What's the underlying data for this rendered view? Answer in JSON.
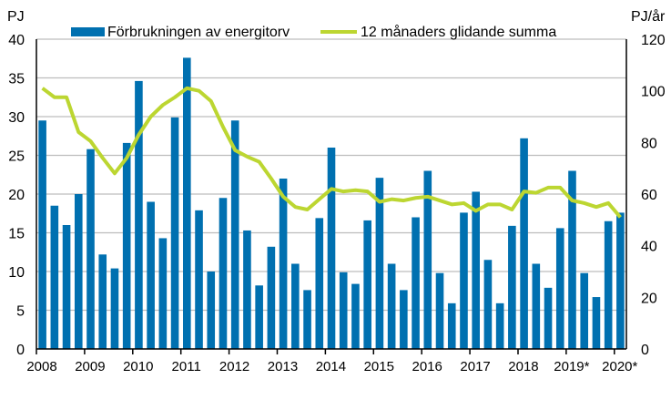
{
  "chart_data": {
    "type": "bar+line",
    "left_axis_unit": "PJ",
    "right_axis_unit": "PJ/år",
    "ylim_left": [
      0,
      40
    ],
    "ylim_right": [
      0,
      120
    ],
    "yticks_left": [
      0,
      5,
      10,
      15,
      20,
      25,
      30,
      35,
      40
    ],
    "yticks_right": [
      0,
      20,
      40,
      60,
      80,
      100,
      120
    ],
    "grid": true,
    "legend_placement": "top",
    "x_labels": [
      "2008",
      "2009",
      "2010",
      "2011",
      "2012",
      "2013",
      "2014",
      "2015",
      "2016",
      "2017",
      "2018",
      "2019*",
      "2020*"
    ],
    "colors": {
      "bars": "#0070b0",
      "line": "#bcd631"
    },
    "series": [
      {
        "name": "Förbrukningen av energitorv",
        "type": "bar",
        "axis": "left",
        "values": [
          29.5,
          18.5,
          16,
          20,
          25.8,
          12.2,
          10.4,
          26.6,
          34.6,
          19,
          14.3,
          29.9,
          37.6,
          17.9,
          10,
          19.5,
          29.5,
          15.3,
          8.2,
          13.2,
          22,
          11,
          7.6,
          16.9,
          26,
          9.9,
          8.4,
          16.6,
          22.1,
          11,
          7.6,
          17,
          23,
          9.8,
          5.9,
          17.6,
          20.3,
          11.5,
          5.9,
          15.9,
          27.2,
          11,
          7.9,
          15.6,
          23,
          9.8,
          6.7,
          16.5,
          17.6
        ]
      },
      {
        "name": "12 månaders glidande summa",
        "type": "line",
        "axis": "right",
        "values": [
          101,
          97.5,
          97.5,
          84,
          80.5,
          74,
          68,
          74,
          83,
          90,
          94.5,
          97.5,
          101,
          100,
          96,
          86,
          77,
          74.5,
          72.5,
          66,
          59,
          55,
          54,
          58,
          62,
          61,
          61.5,
          61,
          57,
          58,
          57.5,
          58.5,
          59,
          57.5,
          56,
          56.5,
          53.5,
          56,
          56,
          54,
          61,
          60.5,
          62.5,
          62.5,
          57.5,
          56.5,
          55,
          56.5,
          51
        ]
      }
    ]
  }
}
